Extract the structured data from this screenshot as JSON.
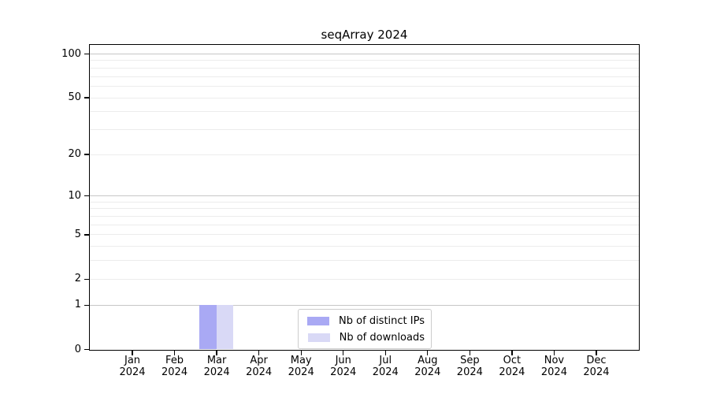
{
  "chart_data": {
    "type": "bar",
    "title": "seqArray 2024",
    "xlabel": "",
    "ylabel": "",
    "categories": [
      {
        "month": "Jan",
        "year": "2024"
      },
      {
        "month": "Feb",
        "year": "2024"
      },
      {
        "month": "Mar",
        "year": "2024"
      },
      {
        "month": "Apr",
        "year": "2024"
      },
      {
        "month": "May",
        "year": "2024"
      },
      {
        "month": "Jun",
        "year": "2024"
      },
      {
        "month": "Jul",
        "year": "2024"
      },
      {
        "month": "Aug",
        "year": "2024"
      },
      {
        "month": "Sep",
        "year": "2024"
      },
      {
        "month": "Oct",
        "year": "2024"
      },
      {
        "month": "Nov",
        "year": "2024"
      },
      {
        "month": "Dec",
        "year": "2024"
      }
    ],
    "series": [
      {
        "key": "distinct-ips",
        "name": "Nb of distinct IPs",
        "color": "#a9a9f4",
        "values": [
          0,
          0,
          1,
          0,
          0,
          0,
          0,
          0,
          0,
          0,
          0,
          0
        ]
      },
      {
        "key": "downloads",
        "name": "Nb of downloads",
        "color": "#d9d9f6",
        "values": [
          0,
          0,
          1,
          0,
          0,
          0,
          0,
          0,
          0,
          0,
          0,
          0
        ]
      }
    ],
    "y_axis": {
      "scale": "log1p",
      "tick_values": [
        0,
        1,
        2,
        5,
        10,
        20,
        50,
        100
      ],
      "range_max": 100
    },
    "gridlines": {
      "major_values": [
        1,
        10,
        100
      ],
      "minor_values": [
        2,
        3,
        4,
        5,
        6,
        7,
        8,
        9,
        20,
        30,
        40,
        50,
        60,
        70,
        80,
        90
      ],
      "major_color": "#c6c6c6",
      "minor_color": "#ececec"
    },
    "legend_position": "bottom-center",
    "axis_color": "#000000"
  }
}
